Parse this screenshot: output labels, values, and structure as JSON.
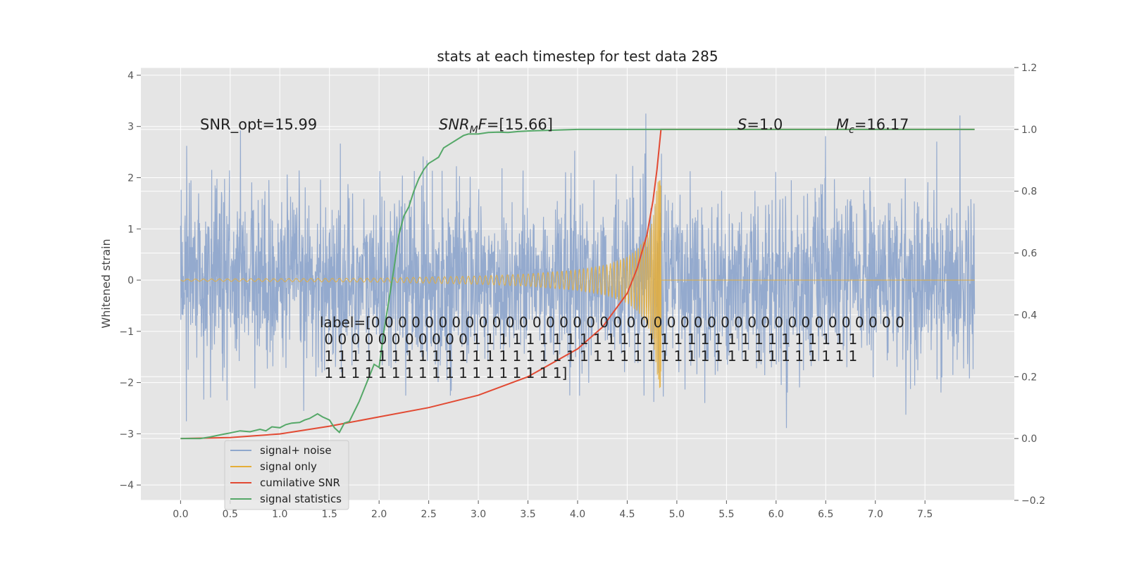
{
  "chart_data": {
    "type": "line",
    "title": "stats at each timestep for test data 285",
    "xlabel": "",
    "ylabel": "Whitened strain",
    "xlim": [
      -0.4,
      8.4
    ],
    "ylim": [
      -4.3,
      4.15
    ],
    "y2lim": [
      -0.2,
      1.2
    ],
    "grid": true,
    "legend_position": "lower-left",
    "x_ticks": [
      "0.0",
      "0.5",
      "1.0",
      "1.5",
      "2.0",
      "2.5",
      "3.0",
      "3.5",
      "4.0",
      "4.5",
      "5.0",
      "5.5",
      "6.0",
      "6.5",
      "7.0",
      "7.5"
    ],
    "y_ticks": [
      "4",
      "3",
      "2",
      "1",
      "0",
      "−1",
      "−2",
      "−3",
      "−4"
    ],
    "y2_ticks": [
      "1.2",
      "1.0",
      "0.8",
      "0.6",
      "0.4",
      "0.2",
      "0.0",
      "−0.2"
    ],
    "annotations": {
      "snr_opt": "SNR_opt=15.99",
      "snr_mf_main": "SNR",
      "snr_mf_sub": "M",
      "snr_mf_rest": "F=[15.66]",
      "s_italic": "S",
      "s_rest": "=1.0",
      "mc_italic": "M",
      "mc_sub": "c",
      "mc_rest": "=16.17",
      "label_lines": [
        "label=[0 0 0 0 0 0 0 0 0 0 0 0 0 0 0 0 0 0 0 0 0 0 0 0 0 0 0 0 0 0 0 0 0 0 0 0 0 0 0 0",
        " 0 0 0 0 0 0 0 0 0 0 0 1 1 1 1 1 1 1 1 1 1 1 1 1 1 1 1 1 1 1 1 1 1 1 1 1 1 1 1 1",
        " 1 1 1 1 1 1 1 1 1 1 1 1 1 1 1 1 1 1 1 1 1 1 1 1 1 1 1 1 1 1 1 1 1 1 1 1 1 1 1 1",
        " 1 1 1 1 1 1 1 1 1 1 1 1 1 1 1 1 1 1]"
      ]
    },
    "series": [
      {
        "name": "signal+ noise",
        "color": "#8fa7cc",
        "axis": "left",
        "note": "whitened noisy strain, approx. std 0.9, x from 0 to 8"
      },
      {
        "name": "signal only",
        "color": "#e5ae38",
        "axis": "left",
        "note": "chirp, amplitude grows until merger at x≈4.84, then ~0",
        "amplitude_profile": {
          "x": [
            0.0,
            1.0,
            2.0,
            3.0,
            3.5,
            4.0,
            4.3,
            4.5,
            4.6,
            4.7,
            4.76,
            4.8,
            4.84
          ],
          "y": [
            0.02,
            0.03,
            0.04,
            0.08,
            0.12,
            0.2,
            0.3,
            0.45,
            0.6,
            0.85,
            1.2,
            1.8,
            2.3
          ]
        }
      },
      {
        "name": "cumilative SNR",
        "color": "#e24a33",
        "axis": "right",
        "x": [
          0.0,
          0.5,
          1.0,
          1.5,
          2.0,
          2.5,
          3.0,
          3.5,
          4.0,
          4.25,
          4.5,
          4.6,
          4.7,
          4.76,
          4.8,
          4.84,
          5.0,
          6.0,
          7.0,
          8.0
        ],
        "y": [
          0.0,
          0.003,
          0.015,
          0.04,
          0.07,
          0.1,
          0.14,
          0.2,
          0.29,
          0.36,
          0.47,
          0.55,
          0.66,
          0.77,
          0.87,
          1.0,
          1.0,
          1.0,
          1.0,
          1.0
        ]
      },
      {
        "name": "signal statistics",
        "color": "#348abd",
        "draw_color": "#55a868",
        "axis": "right",
        "x": [
          0.0,
          0.1,
          0.2,
          0.3,
          0.4,
          0.5,
          0.6,
          0.7,
          0.8,
          0.86,
          0.92,
          1.0,
          1.06,
          1.12,
          1.2,
          1.25,
          1.3,
          1.38,
          1.43,
          1.5,
          1.55,
          1.6,
          1.65,
          1.7,
          1.8,
          1.85,
          1.9,
          1.95,
          2.0,
          2.05,
          2.1,
          2.15,
          2.2,
          2.25,
          2.3,
          2.35,
          2.4,
          2.45,
          2.5,
          2.55,
          2.6,
          2.65,
          2.7,
          2.8,
          2.85,
          2.9,
          3.0,
          3.1,
          3.2,
          3.3,
          3.4,
          3.5,
          3.6,
          3.8,
          4.0,
          4.3,
          4.5,
          4.8,
          5.0,
          6.0,
          7.0,
          8.0
        ],
        "y": [
          0.0,
          0.0,
          0.0,
          0.005,
          0.012,
          0.018,
          0.025,
          0.022,
          0.03,
          0.025,
          0.038,
          0.035,
          0.045,
          0.05,
          0.052,
          0.06,
          0.065,
          0.08,
          0.07,
          0.06,
          0.035,
          0.02,
          0.05,
          0.055,
          0.12,
          0.16,
          0.2,
          0.24,
          0.23,
          0.35,
          0.45,
          0.55,
          0.66,
          0.72,
          0.75,
          0.8,
          0.84,
          0.87,
          0.89,
          0.9,
          0.91,
          0.94,
          0.95,
          0.97,
          0.98,
          0.985,
          0.985,
          0.99,
          0.991,
          0.99,
          0.993,
          0.995,
          0.996,
          0.998,
          1.0,
          1.0,
          1.0,
          1.0,
          1.0,
          1.0,
          1.0,
          1.0
        ]
      }
    ]
  }
}
